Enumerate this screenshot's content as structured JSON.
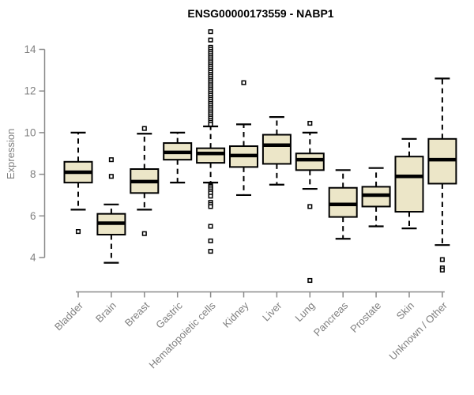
{
  "chart_data": {
    "type": "boxplot",
    "title": "ENSG00000173559 - NABP1",
    "ylabel": "Expression",
    "xlabel": "",
    "yticks": [
      4,
      6,
      8,
      10,
      12,
      14
    ],
    "ylim": [
      2.9,
      14.9
    ],
    "grid": false,
    "legend": false,
    "colors": {
      "box_fill": "#ece6c8",
      "box_stroke": "#000000",
      "median": "#000000",
      "whisker": "#000000",
      "axis": "#8a8a8a",
      "tick_text": "#808080",
      "title_text": "#000000",
      "outlier_stroke": "#000000",
      "outlier_fill": "#ffffff"
    },
    "categories": [
      "Bladder",
      "Brain",
      "Breast",
      "Gastric",
      "Hematopoietic cells",
      "Kidney",
      "Liver",
      "Lung",
      "Pancreas",
      "Prostate",
      "Skin",
      "Unknown / Other"
    ],
    "series": [
      {
        "name": "Bladder",
        "whisker_low": 6.3,
        "q1": 7.6,
        "median": 8.1,
        "q3": 8.6,
        "whisker_high": 10.0,
        "outliers": [
          5.25
        ]
      },
      {
        "name": "Brain",
        "whisker_low": 3.75,
        "q1": 5.1,
        "median": 5.65,
        "q3": 6.1,
        "whisker_high": 6.55,
        "outliers": [
          8.7,
          7.9
        ]
      },
      {
        "name": "Breast",
        "whisker_low": 6.3,
        "q1": 7.1,
        "median": 7.65,
        "q3": 8.25,
        "whisker_high": 9.95,
        "outliers": [
          10.2,
          5.15
        ]
      },
      {
        "name": "Gastric",
        "whisker_low": 7.6,
        "q1": 8.7,
        "median": 9.05,
        "q3": 9.5,
        "whisker_high": 10.0,
        "outliers": []
      },
      {
        "name": "Hematopoietic cells",
        "whisker_low": 7.6,
        "q1": 8.55,
        "median": 9.0,
        "q3": 9.25,
        "whisker_high": 10.3,
        "outliers": [
          14.85,
          14.45,
          14.1,
          14.0,
          13.9,
          13.8,
          13.7,
          13.6,
          13.5,
          13.4,
          13.3,
          13.2,
          13.1,
          13.0,
          12.9,
          12.8,
          12.7,
          12.6,
          12.5,
          12.4,
          12.3,
          12.2,
          12.1,
          12.0,
          11.9,
          11.8,
          11.7,
          11.6,
          11.5,
          11.4,
          11.3,
          11.2,
          11.1,
          11.0,
          10.9,
          10.8,
          10.7,
          10.6,
          10.5,
          10.4,
          7.45,
          7.4,
          7.3,
          7.2,
          7.1,
          6.95,
          6.65,
          6.55,
          6.45,
          5.5,
          4.8,
          4.3
        ]
      },
      {
        "name": "Kidney",
        "whisker_low": 7.0,
        "q1": 8.35,
        "median": 8.9,
        "q3": 9.35,
        "whisker_high": 10.4,
        "outliers": [
          12.4
        ]
      },
      {
        "name": "Liver",
        "whisker_low": 7.5,
        "q1": 8.5,
        "median": 9.4,
        "q3": 9.9,
        "whisker_high": 10.75,
        "outliers": []
      },
      {
        "name": "Lung",
        "whisker_low": 7.3,
        "q1": 8.2,
        "median": 8.7,
        "q3": 9.0,
        "whisker_high": 10.0,
        "outliers": [
          10.45,
          6.45,
          2.9
        ]
      },
      {
        "name": "Pancreas",
        "whisker_low": 4.9,
        "q1": 5.95,
        "median": 6.55,
        "q3": 7.35,
        "whisker_high": 8.2,
        "outliers": []
      },
      {
        "name": "Prostate",
        "whisker_low": 5.5,
        "q1": 6.45,
        "median": 7.0,
        "q3": 7.4,
        "whisker_high": 8.3,
        "outliers": []
      },
      {
        "name": "Skin",
        "whisker_low": 5.4,
        "q1": 6.2,
        "median": 7.9,
        "q3": 8.85,
        "whisker_high": 9.7,
        "outliers": []
      },
      {
        "name": "Unknown / Other",
        "whisker_low": 4.6,
        "q1": 7.55,
        "median": 8.7,
        "q3": 9.7,
        "whisker_high": 12.6,
        "outliers": [
          3.9,
          3.5,
          3.4
        ]
      }
    ]
  }
}
